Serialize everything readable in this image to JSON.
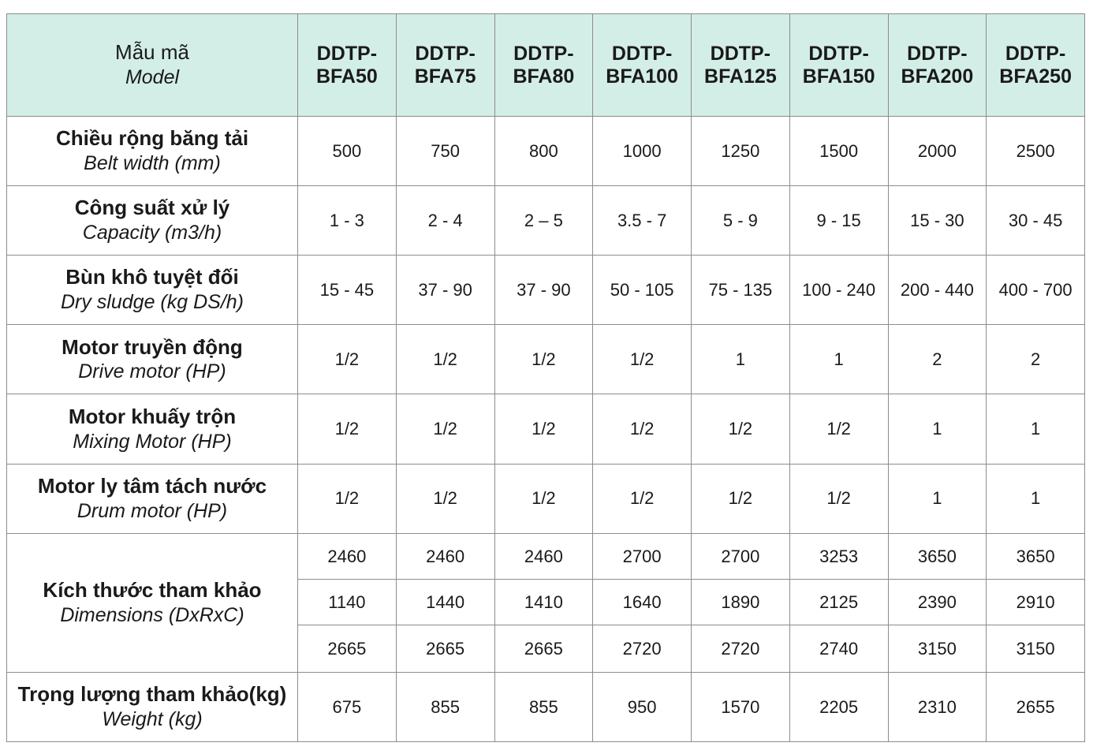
{
  "header": {
    "model_label_vi": "Mẫu mã",
    "model_label_en": "Model",
    "models": [
      [
        "DDTP-",
        "BFA50"
      ],
      [
        "DDTP-",
        "BFA75"
      ],
      [
        "DDTP-",
        "BFA80"
      ],
      [
        "DDTP-",
        "BFA100"
      ],
      [
        "DDTP-",
        "BFA125"
      ],
      [
        "DDTP-",
        "BFA150"
      ],
      [
        "DDTP-",
        "BFA200"
      ],
      [
        "DDTP-",
        "BFA250"
      ]
    ]
  },
  "rows": [
    {
      "vi": "Chiều rộng băng tải",
      "en": "Belt width (mm)",
      "values": [
        "500",
        "750",
        "800",
        "1000",
        "1250",
        "1500",
        "2000",
        "2500"
      ]
    },
    {
      "vi": "Công suất xử lý",
      "en": "Capacity (m3/h)",
      "values": [
        "1 - 3",
        "2 - 4",
        "2 – 5",
        "3.5 - 7",
        "5 - 9",
        "9 - 15",
        "15 - 30",
        "30 - 45"
      ]
    },
    {
      "vi": "Bùn khô tuyệt đối",
      "en": "Dry sludge (kg DS/h)",
      "values": [
        "15 - 45",
        "37 - 90",
        "37 - 90",
        "50 - 105",
        "75 - 135",
        "100 - 240",
        "200 - 440",
        "400 - 700"
      ]
    },
    {
      "vi": "Motor truyền động",
      "en": "Drive motor (HP)",
      "values": [
        "1/2",
        "1/2",
        "1/2",
        "1/2",
        "1",
        "1",
        "2",
        "2"
      ]
    },
    {
      "vi": "Motor khuấy trộn",
      "en": "Mixing Motor (HP)",
      "values": [
        "1/2",
        "1/2",
        "1/2",
        "1/2",
        "1/2",
        "1/2",
        "1",
        "1"
      ]
    },
    {
      "vi": "Motor ly tâm tách nước",
      "en": "Drum motor (HP)",
      "values": [
        "1/2",
        "1/2",
        "1/2",
        "1/2",
        "1/2",
        "1/2",
        "1",
        "1"
      ]
    }
  ],
  "dimensions": {
    "vi": "Kích thước tham khảo",
    "en": "Dimensions (DxRxC)",
    "rows": [
      [
        "2460",
        "2460",
        "2460",
        "2700",
        "2700",
        "3253",
        "3650",
        "3650"
      ],
      [
        "1140",
        "1440",
        "1410",
        "1640",
        "1890",
        "2125",
        "2390",
        "2910"
      ],
      [
        "2665",
        "2665",
        "2665",
        "2720",
        "2720",
        "2740",
        "3150",
        "3150"
      ]
    ]
  },
  "weight": {
    "vi": "Trọng lượng tham khảo(kg)",
    "en": "Weight (kg)",
    "values": [
      "675",
      "855",
      "855",
      "950",
      "1570",
      "2205",
      "2310",
      "2655"
    ]
  }
}
